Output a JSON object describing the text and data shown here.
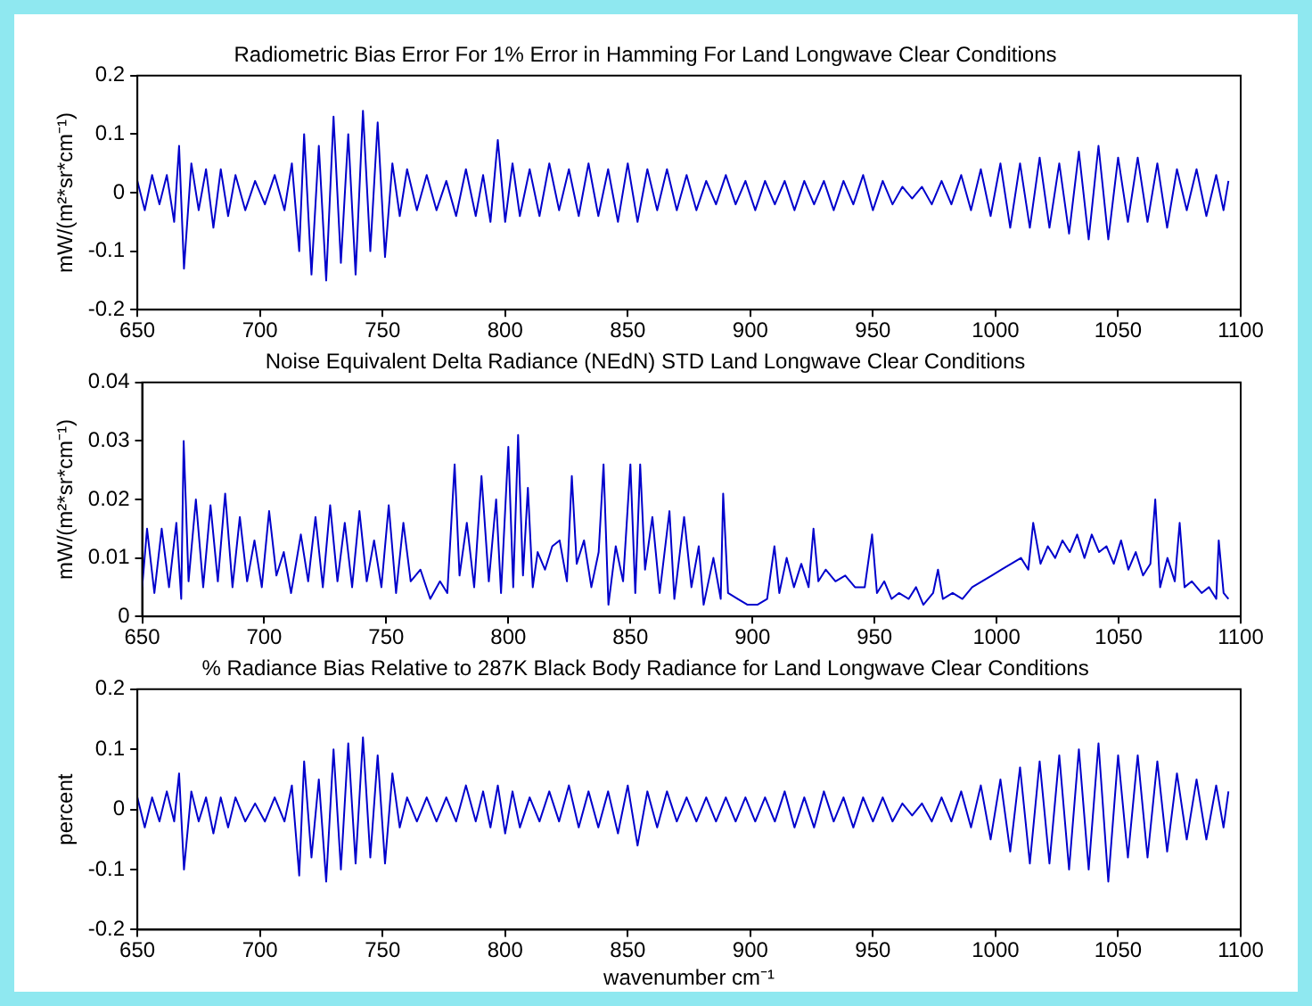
{
  "chart_data": [
    {
      "type": "line",
      "title": "Radiometric Bias Error For 1% Error in Hamming For Land Longwave Clear Conditions",
      "ylabel": "mW/(m²*sr*cm⁻¹)",
      "xlim": [
        650,
        1100
      ],
      "xticks": [
        650,
        700,
        750,
        800,
        850,
        900,
        950,
        1000,
        1050,
        1100
      ],
      "ylim": [
        -0.2,
        0.2
      ],
      "yticks": [
        -0.2,
        -0.1,
        0,
        0.1,
        0.2
      ],
      "grid": false,
      "legend": false,
      "marker": "none",
      "line_style": "solid",
      "x": [
        650,
        653,
        656,
        659,
        662,
        665,
        667,
        669,
        672,
        675,
        678,
        681,
        684,
        687,
        690,
        694,
        698,
        702,
        706,
        710,
        713,
        716,
        718,
        721,
        724,
        727,
        730,
        733,
        736,
        739,
        742,
        745,
        748,
        751,
        754,
        757,
        760,
        764,
        768,
        772,
        776,
        780,
        784,
        788,
        791,
        794,
        797,
        800,
        803,
        806,
        810,
        814,
        818,
        822,
        826,
        830,
        834,
        838,
        842,
        846,
        850,
        854,
        858,
        862,
        866,
        870,
        874,
        878,
        882,
        886,
        890,
        894,
        898,
        902,
        906,
        910,
        914,
        918,
        922,
        926,
        930,
        934,
        938,
        942,
        946,
        950,
        954,
        958,
        962,
        966,
        970,
        974,
        978,
        982,
        986,
        990,
        994,
        998,
        1002,
        1006,
        1010,
        1014,
        1018,
        1022,
        1026,
        1030,
        1034,
        1038,
        1042,
        1046,
        1050,
        1054,
        1058,
        1062,
        1066,
        1070,
        1074,
        1078,
        1082,
        1086,
        1090,
        1093,
        1095
      ],
      "series": [
        {
          "color": "#0000cc",
          "values": [
            0.02,
            -0.03,
            0.03,
            -0.02,
            0.03,
            -0.05,
            0.08,
            -0.13,
            0.05,
            -0.03,
            0.04,
            -0.06,
            0.04,
            -0.04,
            0.03,
            -0.03,
            0.02,
            -0.02,
            0.03,
            -0.03,
            0.05,
            -0.1,
            0.1,
            -0.14,
            0.08,
            -0.15,
            0.13,
            -0.12,
            0.1,
            -0.14,
            0.14,
            -0.1,
            0.12,
            -0.11,
            0.05,
            -0.04,
            0.04,
            -0.03,
            0.03,
            -0.03,
            0.02,
            -0.04,
            0.04,
            -0.04,
            0.03,
            -0.05,
            0.09,
            -0.05,
            0.05,
            -0.04,
            0.04,
            -0.04,
            0.05,
            -0.03,
            0.04,
            -0.04,
            0.05,
            -0.04,
            0.04,
            -0.05,
            0.05,
            -0.05,
            0.04,
            -0.03,
            0.04,
            -0.03,
            0.03,
            -0.03,
            0.02,
            -0.02,
            0.03,
            -0.02,
            0.02,
            -0.03,
            0.02,
            -0.02,
            0.02,
            -0.03,
            0.02,
            -0.02,
            0.02,
            -0.03,
            0.02,
            -0.02,
            0.03,
            -0.03,
            0.02,
            -0.02,
            0.01,
            -0.01,
            0.01,
            -0.02,
            0.02,
            -0.02,
            0.03,
            -0.03,
            0.04,
            -0.04,
            0.05,
            -0.06,
            0.05,
            -0.06,
            0.06,
            -0.06,
            0.05,
            -0.07,
            0.07,
            -0.08,
            0.08,
            -0.08,
            0.06,
            -0.05,
            0.06,
            -0.05,
            0.05,
            -0.06,
            0.04,
            -0.03,
            0.04,
            -0.04,
            0.03,
            -0.03,
            0.02
          ]
        }
      ]
    },
    {
      "type": "line",
      "title": "Noise Equivalent Delta Radiance (NEdN) STD Land Longwave Clear Conditions",
      "ylabel": "mW/(m²*sr*cm⁻¹)",
      "xlim": [
        650,
        1100
      ],
      "xticks": [
        650,
        700,
        750,
        800,
        850,
        900,
        950,
        1000,
        1050,
        1100
      ],
      "ylim": [
        0,
        0.04
      ],
      "yticks": [
        0,
        0.01,
        0.02,
        0.03,
        0.04
      ],
      "grid": false,
      "legend": false,
      "marker": "none",
      "line_style": "solid",
      "x": [
        650,
        652,
        655,
        658,
        661,
        664,
        666,
        667,
        669,
        672,
        675,
        678,
        681,
        684,
        687,
        690,
        693,
        696,
        699,
        702,
        705,
        708,
        711,
        715,
        718,
        721,
        724,
        727,
        730,
        733,
        736,
        739,
        742,
        745,
        748,
        751,
        754,
        757,
        760,
        764,
        768,
        772,
        775,
        778,
        780,
        783,
        786,
        789,
        792,
        795,
        797,
        800,
        802,
        804,
        806,
        808,
        810,
        812,
        815,
        818,
        821,
        824,
        826,
        828,
        831,
        834,
        837,
        839,
        841,
        844,
        847,
        850,
        852,
        854,
        856,
        859,
        862,
        866,
        868,
        872,
        875,
        878,
        880,
        884,
        887,
        888,
        890,
        894,
        898,
        902,
        906,
        909,
        911,
        914,
        917,
        920,
        923,
        925,
        927,
        930,
        934,
        938,
        942,
        946,
        949,
        951,
        954,
        957,
        960,
        964,
        967,
        970,
        974,
        976,
        978,
        982,
        986,
        990,
        994,
        998,
        1002,
        1006,
        1010,
        1013,
        1015,
        1018,
        1021,
        1024,
        1027,
        1030,
        1033,
        1036,
        1039,
        1042,
        1045,
        1048,
        1051,
        1054,
        1057,
        1060,
        1063,
        1065,
        1067,
        1070,
        1073,
        1075,
        1077,
        1080,
        1084,
        1087,
        1090,
        1091,
        1093,
        1095
      ],
      "series": [
        {
          "color": "#0000cc",
          "values": [
            0.005,
            0.015,
            0.004,
            0.015,
            0.005,
            0.016,
            0.003,
            0.03,
            0.006,
            0.02,
            0.005,
            0.019,
            0.006,
            0.021,
            0.005,
            0.017,
            0.006,
            0.013,
            0.005,
            0.018,
            0.007,
            0.011,
            0.004,
            0.014,
            0.006,
            0.017,
            0.005,
            0.019,
            0.006,
            0.016,
            0.005,
            0.018,
            0.006,
            0.013,
            0.005,
            0.019,
            0.004,
            0.016,
            0.006,
            0.008,
            0.003,
            0.006,
            0.004,
            0.026,
            0.007,
            0.016,
            0.005,
            0.024,
            0.006,
            0.02,
            0.004,
            0.029,
            0.005,
            0.031,
            0.007,
            0.022,
            0.005,
            0.011,
            0.008,
            0.012,
            0.013,
            0.006,
            0.024,
            0.009,
            0.013,
            0.005,
            0.011,
            0.026,
            0.002,
            0.012,
            0.006,
            0.026,
            0.004,
            0.026,
            0.008,
            0.017,
            0.004,
            0.018,
            0.003,
            0.017,
            0.005,
            0.012,
            0.002,
            0.01,
            0.003,
            0.021,
            0.004,
            0.003,
            0.002,
            0.002,
            0.003,
            0.012,
            0.004,
            0.01,
            0.005,
            0.009,
            0.005,
            0.015,
            0.006,
            0.008,
            0.006,
            0.007,
            0.005,
            0.005,
            0.014,
            0.004,
            0.006,
            0.003,
            0.004,
            0.003,
            0.005,
            0.002,
            0.004,
            0.008,
            0.003,
            0.004,
            0.003,
            0.005,
            0.006,
            0.007,
            0.008,
            0.009,
            0.01,
            0.008,
            0.016,
            0.009,
            0.012,
            0.01,
            0.013,
            0.011,
            0.014,
            0.01,
            0.014,
            0.011,
            0.012,
            0.009,
            0.013,
            0.008,
            0.011,
            0.007,
            0.009,
            0.02,
            0.005,
            0.01,
            0.006,
            0.016,
            0.005,
            0.006,
            0.004,
            0.005,
            0.003,
            0.013,
            0.004,
            0.003
          ]
        }
      ]
    },
    {
      "type": "line",
      "title": "% Radiance Bias Relative to 287K Black Body Radiance for Land Longwave Clear Conditions",
      "ylabel": "percent",
      "xlabel": "wavenumber cm⁻¹",
      "xlim": [
        650,
        1100
      ],
      "xticks": [
        650,
        700,
        750,
        800,
        850,
        900,
        950,
        1000,
        1050,
        1100
      ],
      "ylim": [
        -0.2,
        0.2
      ],
      "yticks": [
        -0.2,
        -0.1,
        0,
        0.1,
        0.2
      ],
      "grid": false,
      "legend": false,
      "marker": "none",
      "line_style": "solid",
      "x": [
        650,
        653,
        656,
        659,
        662,
        665,
        667,
        669,
        672,
        675,
        678,
        681,
        684,
        687,
        690,
        694,
        698,
        702,
        706,
        710,
        713,
        716,
        718,
        721,
        724,
        727,
        730,
        733,
        736,
        739,
        742,
        745,
        748,
        751,
        754,
        757,
        760,
        764,
        768,
        772,
        776,
        780,
        784,
        788,
        791,
        794,
        797,
        800,
        803,
        806,
        810,
        814,
        818,
        822,
        826,
        830,
        834,
        838,
        842,
        846,
        850,
        854,
        858,
        862,
        866,
        870,
        874,
        878,
        882,
        886,
        890,
        894,
        898,
        902,
        906,
        910,
        914,
        918,
        922,
        926,
        930,
        934,
        938,
        942,
        946,
        950,
        954,
        958,
        962,
        966,
        970,
        974,
        978,
        982,
        986,
        990,
        994,
        998,
        1002,
        1006,
        1010,
        1014,
        1018,
        1022,
        1026,
        1030,
        1034,
        1038,
        1042,
        1046,
        1050,
        1054,
        1058,
        1062,
        1066,
        1070,
        1074,
        1078,
        1082,
        1086,
        1090,
        1093,
        1095
      ],
      "series": [
        {
          "color": "#0000cc",
          "values": [
            0.02,
            -0.03,
            0.02,
            -0.02,
            0.03,
            -0.02,
            0.06,
            -0.1,
            0.03,
            -0.02,
            0.02,
            -0.04,
            0.02,
            -0.03,
            0.02,
            -0.02,
            0.01,
            -0.02,
            0.02,
            -0.02,
            0.04,
            -0.11,
            0.08,
            -0.08,
            0.05,
            -0.12,
            0.1,
            -0.1,
            0.11,
            -0.09,
            0.12,
            -0.08,
            0.09,
            -0.09,
            0.06,
            -0.03,
            0.02,
            -0.02,
            0.02,
            -0.02,
            0.02,
            -0.02,
            0.04,
            -0.02,
            0.03,
            -0.03,
            0.04,
            -0.04,
            0.03,
            -0.03,
            0.02,
            -0.02,
            0.03,
            -0.02,
            0.04,
            -0.03,
            0.03,
            -0.03,
            0.03,
            -0.04,
            0.04,
            -0.06,
            0.03,
            -0.03,
            0.03,
            -0.02,
            0.02,
            -0.02,
            0.02,
            -0.02,
            0.02,
            -0.02,
            0.02,
            -0.02,
            0.02,
            -0.02,
            0.03,
            -0.03,
            0.02,
            -0.03,
            0.03,
            -0.02,
            0.02,
            -0.03,
            0.02,
            -0.02,
            0.02,
            -0.02,
            0.01,
            -0.01,
            0.01,
            -0.02,
            0.02,
            -0.02,
            0.03,
            -0.03,
            0.04,
            -0.05,
            0.05,
            -0.07,
            0.07,
            -0.09,
            0.08,
            -0.09,
            0.09,
            -0.1,
            0.1,
            -0.1,
            0.11,
            -0.12,
            0.09,
            -0.08,
            0.09,
            -0.08,
            0.08,
            -0.07,
            0.06,
            -0.05,
            0.05,
            -0.05,
            0.04,
            -0.03,
            0.03
          ]
        }
      ]
    }
  ]
}
